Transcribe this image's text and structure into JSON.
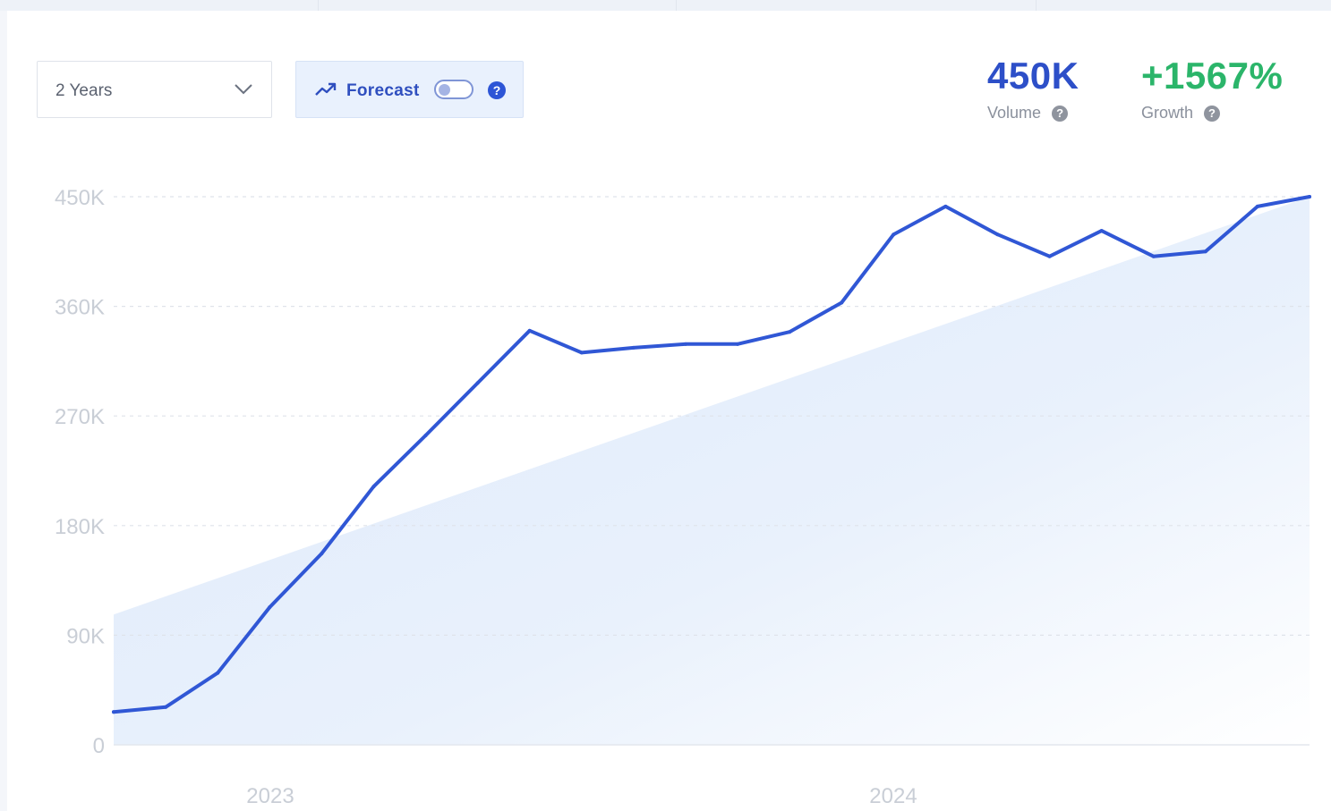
{
  "controls": {
    "range_label": "2 Years",
    "forecast_label": "Forecast",
    "forecast_enabled": false,
    "help_symbol": "?"
  },
  "stats": {
    "volume_value": "450K",
    "volume_label": "Volume",
    "growth_value": "+1567%",
    "growth_label": "Growth"
  },
  "colors": {
    "line": "#3057d5",
    "trend_fill": "#e3eefb",
    "volume": "#2d4fc8",
    "growth": "#2bb56a"
  },
  "icons": [
    "chevron-down-icon",
    "trend-up-icon",
    "question-icon"
  ],
  "chart_data": {
    "type": "line",
    "ylim": [
      0,
      450000
    ],
    "y_ticks": [
      0,
      90000,
      180000,
      270000,
      360000,
      450000
    ],
    "y_tick_labels": [
      "0",
      "90K",
      "180K",
      "270K",
      "360K",
      "450K"
    ],
    "x_tick_labels": [
      "2023",
      "2024"
    ],
    "grid": true,
    "series": [
      {
        "values": [
          27000,
          31000,
          59000,
          113000,
          157000,
          212000,
          254000,
          297000,
          340000,
          322000,
          326000,
          329000,
          329000,
          339000,
          363000,
          419000,
          442000,
          419000,
          401000,
          422000,
          401000,
          405000,
          442000,
          450000
        ]
      }
    ],
    "trend": {
      "start": 107000,
      "end": 450000
    }
  }
}
